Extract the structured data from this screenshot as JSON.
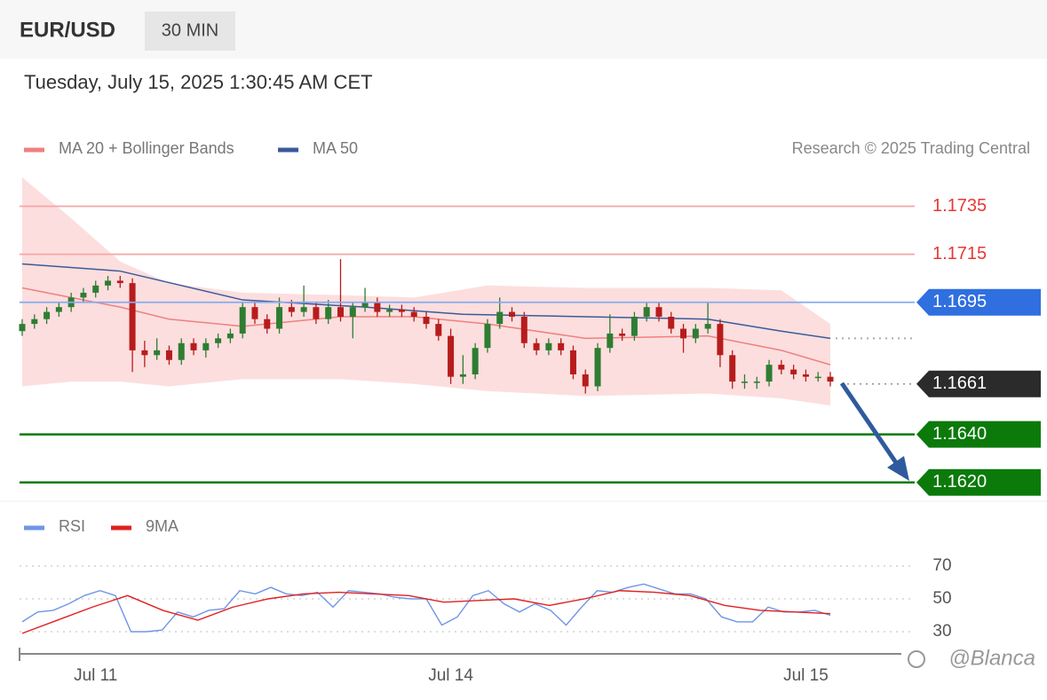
{
  "header": {
    "symbol": "EUR/USD",
    "interval": "30 MIN",
    "timestamp": "Tuesday, July 15, 2025 1:30:45 AM CET",
    "credit": "Research © 2025 Trading Central",
    "watermark": "@Blanca"
  },
  "chart_data": [
    {
      "type": "candlestick",
      "up_color": "#2e7d32",
      "down_color": "#b71c1c",
      "ylim": [
        1.1614,
        1.1747
      ],
      "categories": [
        null,
        null,
        null,
        null,
        null,
        null,
        "Jul 11",
        null,
        null,
        null,
        null,
        null,
        null,
        null,
        null,
        null,
        null,
        null,
        null,
        null,
        null,
        null,
        null,
        null,
        null,
        null,
        null,
        null,
        null,
        null,
        null,
        null,
        null,
        null,
        null,
        "Jul 14",
        null,
        null,
        null,
        null,
        null,
        null,
        null,
        null,
        null,
        null,
        null,
        null,
        null,
        null,
        null,
        null,
        null,
        null,
        null,
        null,
        null,
        null,
        null,
        null,
        null,
        null,
        null,
        null,
        "Jul 15",
        null,
        null
      ],
      "candles": [
        [
          1.1683,
          1.1688,
          1.1681,
          1.1686
        ],
        [
          1.1686,
          1.169,
          1.1684,
          1.1688
        ],
        [
          1.1688,
          1.1693,
          1.1686,
          1.1691
        ],
        [
          1.1691,
          1.1695,
          1.1689,
          1.1693
        ],
        [
          1.1693,
          1.1699,
          1.1691,
          1.1697
        ],
        [
          1.1697,
          1.1701,
          1.1695,
          1.1699
        ],
        [
          1.1699,
          1.1704,
          1.1697,
          1.1702
        ],
        [
          1.1702,
          1.1706,
          1.17,
          1.1704
        ],
        [
          1.1704,
          1.1706,
          1.1701,
          1.1703
        ],
        [
          1.1703,
          1.1705,
          1.1666,
          1.1675
        ],
        [
          1.1675,
          1.1679,
          1.1668,
          1.1673
        ],
        [
          1.1673,
          1.168,
          1.1671,
          1.1675
        ],
        [
          1.1675,
          1.1677,
          1.1669,
          1.1671
        ],
        [
          1.1671,
          1.168,
          1.1669,
          1.1678
        ],
        [
          1.1678,
          1.168,
          1.1673,
          1.1675
        ],
        [
          1.1675,
          1.168,
          1.1672,
          1.1678
        ],
        [
          1.1678,
          1.1682,
          1.1676,
          1.168
        ],
        [
          1.168,
          1.1684,
          1.1678,
          1.1682
        ],
        [
          1.1682,
          1.1695,
          1.168,
          1.1693
        ],
        [
          1.1693,
          1.1695,
          1.1686,
          1.1688
        ],
        [
          1.1688,
          1.169,
          1.1682,
          1.1684
        ],
        [
          1.1684,
          1.1697,
          1.1682,
          1.1693
        ],
        [
          1.1693,
          1.1696,
          1.1689,
          1.1691
        ],
        [
          1.1691,
          1.1702,
          1.1689,
          1.1693
        ],
        [
          1.1693,
          1.1695,
          1.1686,
          1.1688
        ],
        [
          1.1688,
          1.1696,
          1.1686,
          1.1693
        ],
        [
          1.1693,
          1.1713,
          1.1687,
          1.1689
        ],
        [
          1.1689,
          1.1695,
          1.168,
          1.1693
        ],
        [
          1.1693,
          1.1701,
          1.1691,
          1.1695
        ],
        [
          1.1695,
          1.1697,
          1.1689,
          1.1691
        ],
        [
          1.1691,
          1.1694,
          1.1689,
          1.1692
        ],
        [
          1.1692,
          1.1694,
          1.1689,
          1.1691
        ],
        [
          1.1691,
          1.1693,
          1.1687,
          1.1689
        ],
        [
          1.1689,
          1.1691,
          1.1684,
          1.1686
        ],
        [
          1.1686,
          1.1688,
          1.1679,
          1.1681
        ],
        [
          1.1681,
          1.1684,
          1.1661,
          1.1664
        ],
        [
          1.1664,
          1.1673,
          1.1661,
          1.1665
        ],
        [
          1.1665,
          1.1678,
          1.1663,
          1.1676
        ],
        [
          1.1676,
          1.1688,
          1.1674,
          1.1686
        ],
        [
          1.1686,
          1.1697,
          1.1684,
          1.1691
        ],
        [
          1.1691,
          1.1693,
          1.1687,
          1.1689
        ],
        [
          1.1689,
          1.1691,
          1.1676,
          1.1678
        ],
        [
          1.1678,
          1.168,
          1.1673,
          1.1675
        ],
        [
          1.1675,
          1.168,
          1.1673,
          1.1678
        ],
        [
          1.1678,
          1.168,
          1.1673,
          1.1675
        ],
        [
          1.1675,
          1.1677,
          1.1663,
          1.1665
        ],
        [
          1.1665,
          1.1667,
          1.1657,
          1.166
        ],
        [
          1.166,
          1.1678,
          1.1658,
          1.1676
        ],
        [
          1.1676,
          1.169,
          1.1674,
          1.1682
        ],
        [
          1.1682,
          1.1684,
          1.1679,
          1.1681
        ],
        [
          1.1681,
          1.1691,
          1.1679,
          1.1689
        ],
        [
          1.1689,
          1.1695,
          1.1687,
          1.1693
        ],
        [
          1.1693,
          1.1695,
          1.1687,
          1.1689
        ],
        [
          1.1689,
          1.1691,
          1.1682,
          1.1684
        ],
        [
          1.1684,
          1.1686,
          1.1674,
          1.168
        ],
        [
          1.168,
          1.1686,
          1.1678,
          1.1684
        ],
        [
          1.1684,
          1.1695,
          1.1682,
          1.1686
        ],
        [
          1.1686,
          1.1688,
          1.1668,
          1.1673
        ],
        [
          1.1673,
          1.1675,
          1.1659,
          1.1662
        ],
        [
          1.1662,
          1.1665,
          1.1659,
          1.1662
        ],
        [
          1.1662,
          1.1664,
          1.1659,
          1.1662
        ],
        [
          1.1662,
          1.1671,
          1.166,
          1.1669
        ],
        [
          1.1669,
          1.1671,
          1.1665,
          1.1667
        ],
        [
          1.1667,
          1.1669,
          1.1663,
          1.1665
        ],
        [
          1.1665,
          1.1667,
          1.1662,
          1.1664
        ],
        [
          1.1664,
          1.1666,
          1.1662,
          1.1664
        ],
        [
          1.1664,
          1.1666,
          1.166,
          1.1662
        ]
      ],
      "series": [
        {
          "name": "MA 20 + Bollinger Bands",
          "color": "#f08080",
          "band_color": "#fbd3d3",
          "x": [
            0,
            4,
            8,
            12,
            18,
            26,
            32,
            38,
            46,
            56,
            62,
            66
          ],
          "values": [
            1.1701,
            1.1697,
            1.1693,
            1.1688,
            1.1685,
            1.1689,
            1.1689,
            1.1686,
            1.168,
            1.1681,
            1.1675,
            1.1669
          ],
          "upper": [
            1.1747,
            1.173,
            1.1712,
            1.1703,
            1.1699,
            1.1698,
            1.1697,
            1.1702,
            1.1701,
            1.1701,
            1.17,
            1.1686
          ],
          "lower": [
            1.166,
            1.1662,
            1.1662,
            1.166,
            1.1663,
            1.1663,
            1.1661,
            1.1658,
            1.1656,
            1.1657,
            1.1655,
            1.1652
          ]
        },
        {
          "name": "MA 50",
          "color": "#3a5a9a",
          "x": [
            0,
            8,
            18,
            28,
            36,
            46,
            56,
            62,
            66
          ],
          "values": [
            1.1711,
            1.1708,
            1.1696,
            1.1693,
            1.169,
            1.1689,
            1.1688,
            1.1683,
            1.168
          ]
        }
      ],
      "levels": [
        {
          "value": 1.1735,
          "label": "1.1735",
          "color": "#e53935",
          "line": "#f4a6a6",
          "tag": false
        },
        {
          "value": 1.1715,
          "label": "1.1715",
          "color": "#e53935",
          "line": "#f4a6a6",
          "tag": false
        },
        {
          "value": 1.1695,
          "label": "1.1695",
          "color": "#2f6fe0",
          "line": "#86aaf0",
          "tag": true
        },
        {
          "value": 1.1661,
          "label": "1.1661",
          "color": "#2b2b2b",
          "line": "#999999",
          "tag": true,
          "dashed": true
        },
        {
          "value": 1.164,
          "label": "1.1640",
          "color": "#0b7a0b",
          "line": "#0b7a0b",
          "tag": true,
          "weight": 2.5
        },
        {
          "value": 1.162,
          "label": "1.1620",
          "color": "#0b7a0b",
          "line": "#0b7a0b",
          "tag": true,
          "weight": 2.5
        }
      ]
    },
    {
      "type": "line",
      "ylim": [
        25,
        75
      ],
      "yticks": [
        30,
        50,
        70
      ],
      "grid": true,
      "series": [
        {
          "name": "RSI",
          "color": "#6f95e6",
          "values": [
            36,
            42,
            43,
            47,
            52,
            55,
            52,
            30,
            30,
            31,
            42,
            39,
            43,
            44,
            55,
            53,
            57,
            53,
            52,
            54,
            45,
            55,
            54,
            53,
            51,
            50,
            50,
            34,
            39,
            52,
            55,
            47,
            42,
            47,
            43,
            34,
            45,
            55,
            54,
            57,
            59,
            56,
            53,
            53,
            50,
            39,
            36,
            36,
            45,
            42,
            42,
            43,
            40
          ]
        },
        {
          "name": "9MA",
          "color": "#e02020",
          "values": [
            29,
            37,
            45,
            52,
            43,
            37,
            45,
            50,
            53,
            54,
            53,
            52,
            48,
            49,
            50,
            46,
            50,
            55,
            54,
            52,
            46,
            43,
            42,
            41
          ]
        }
      ]
    }
  ]
}
